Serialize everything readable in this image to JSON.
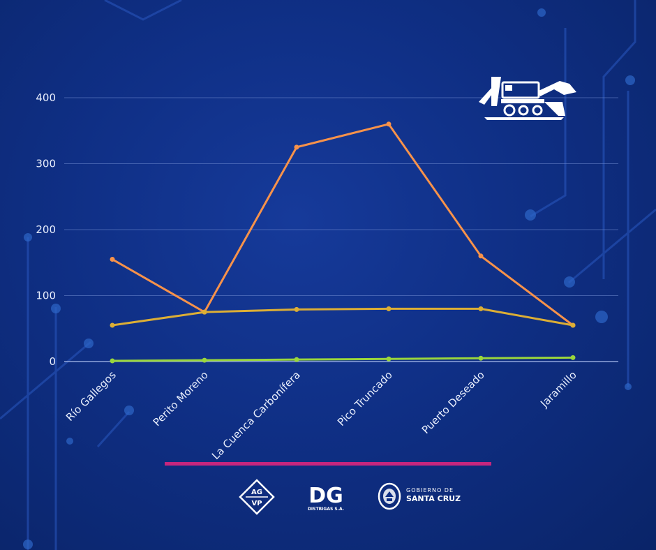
{
  "colors": {
    "background": "#0f2f85",
    "grid": "#6f8ad0",
    "divider": "#c6267e",
    "series": [
      "#f7924a",
      "#dcae35",
      "#9ad63c"
    ]
  },
  "chart_data": {
    "type": "line",
    "title": "",
    "xlabel": "",
    "ylabel": "",
    "ylim": [
      0,
      400
    ],
    "yticks": [
      "0",
      "100",
      "200",
      "300",
      "400"
    ],
    "grid": true,
    "legend": "none",
    "categories": [
      "Río Gallegos",
      "Perito Moreno",
      "La Cuenca Carbonífera",
      "Pico Truncado",
      "Puerto Deseado",
      "Jaramillo"
    ],
    "series": [
      {
        "color": "#f7924a",
        "values": [
          155,
          75,
          325,
          360,
          160,
          55
        ]
      },
      {
        "color": "#dcae35",
        "values": [
          55,
          75,
          79,
          80,
          80,
          55
        ]
      },
      {
        "color": "#9ad63c",
        "values": [
          1,
          2,
          3,
          4,
          5,
          6
        ]
      }
    ]
  },
  "logos": {
    "agvp": {
      "line1": "AG",
      "line2": "VP"
    },
    "dg": {
      "mark": "DG",
      "subtitle": "DISTRIGAS S.A."
    },
    "santa_cruz": {
      "line1": "GOBIERNO DE",
      "line2": "SANTA CRUZ"
    },
    "top_right_icon": "excavator-icon"
  }
}
